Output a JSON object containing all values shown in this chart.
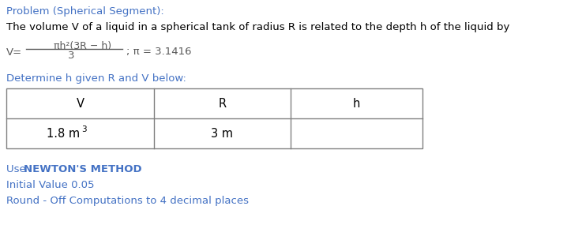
{
  "bg_color": "#ffffff",
  "title_text": "Problem (Spherical Segment):",
  "title_color": "#4472C4",
  "line1_text": "The volume V of a liquid in a spherical tank of radius R is related to the depth h of the liquid by",
  "line1_color": "#000000",
  "formula_V": "V=",
  "formula_numerator": "πh²(3R − h)",
  "formula_denominator": "3",
  "formula_semi": "; π = 3.1416",
  "formula_color": "#595959",
  "determine_text": "Determine h given R and V below:",
  "determine_color": "#4472C4",
  "table_headers": [
    "V",
    "R",
    "h"
  ],
  "table_row_v": "1.8 m",
  "table_row_v_sup": "3",
  "table_row_r": "3 m",
  "table_border_color": "#808080",
  "table_text_color": "#000000",
  "newton_prefix": "Use ",
  "newton_bold": "NEWTON'S METHOD",
  "newton_color": "#4472C4",
  "initial_text": "Initial Value 0.05",
  "initial_color": "#4472C4",
  "round_text": "Round - Off Computations to 4 decimal places",
  "round_color": "#4472C4",
  "fig_width": 7.37,
  "fig_height": 2.99,
  "dpi": 100
}
